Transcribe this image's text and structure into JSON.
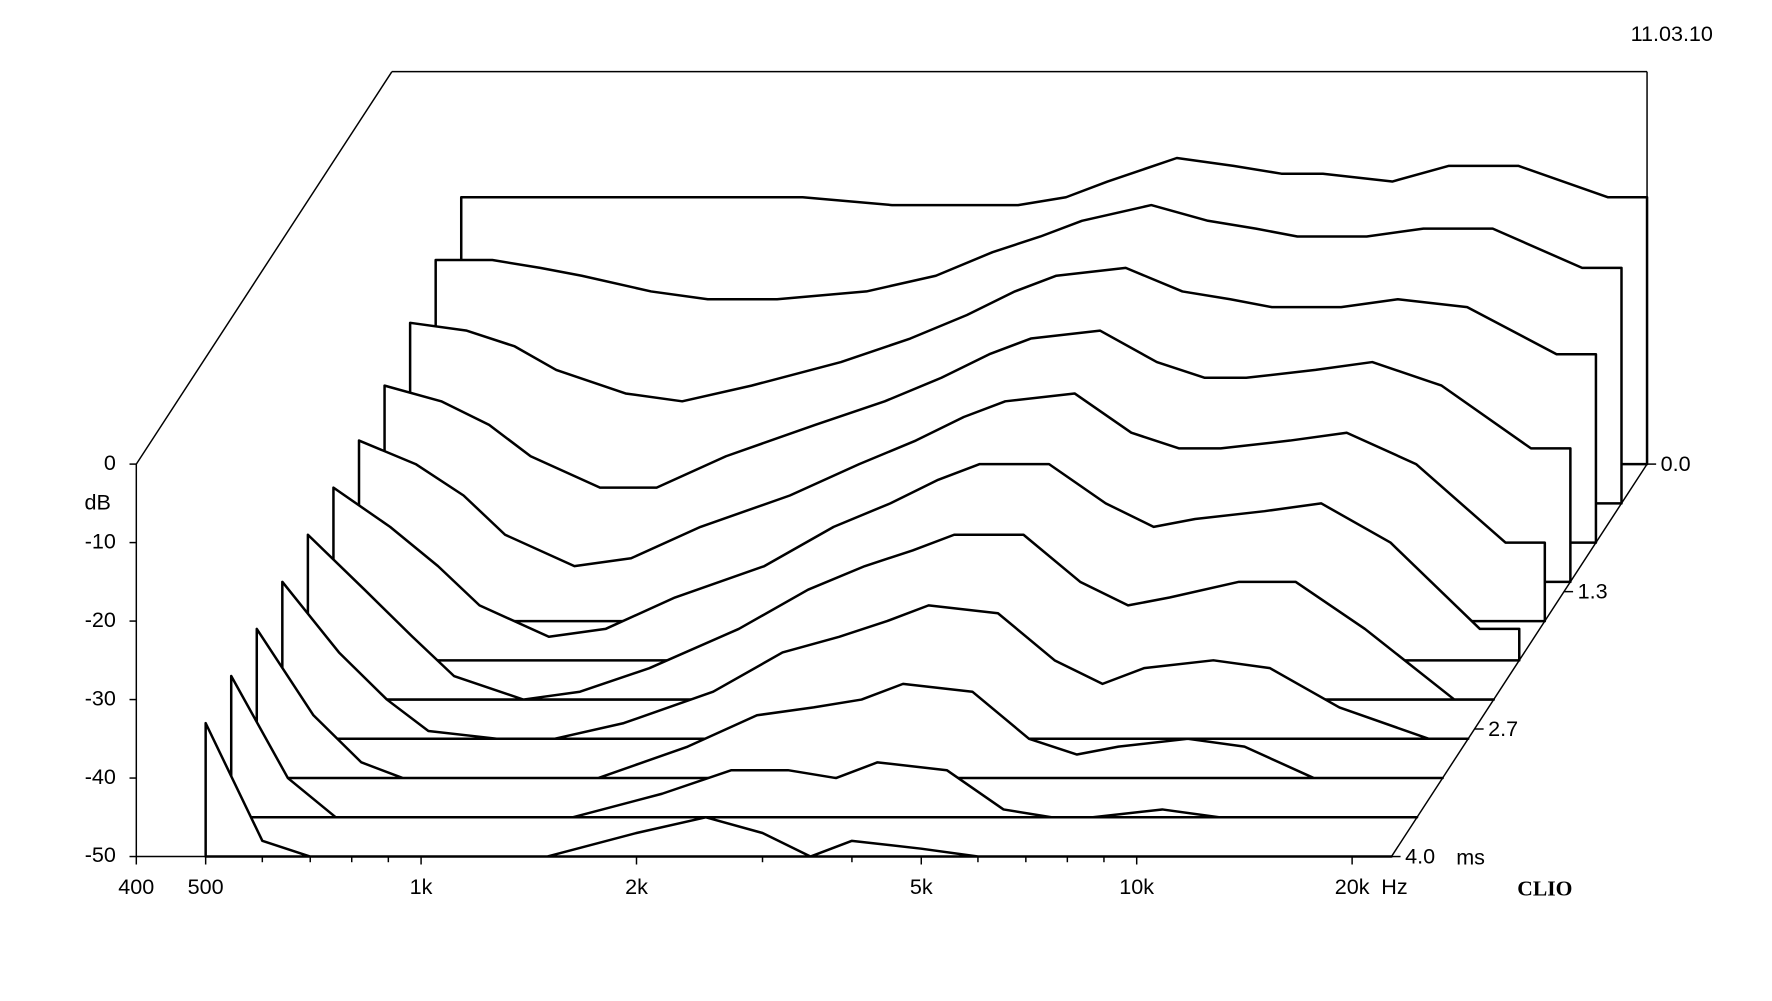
{
  "chart_data": {
    "type": "waterfall",
    "date": "11.03.10",
    "brand": "CLIO",
    "x_unit": "Hz",
    "y_unit": "dB",
    "z_unit": "ms",
    "x_scale": "log",
    "xlim": [
      400,
      22700
    ],
    "xticks": [
      400,
      500,
      {
        "value": 1000,
        "label": "1k"
      },
      {
        "value": 2000,
        "label": "2k"
      },
      {
        "value": 5000,
        "label": "5k"
      },
      {
        "value": 10000,
        "label": "10k"
      },
      {
        "value": 20000,
        "label": "20k"
      }
    ],
    "xminorticks": [
      600,
      700,
      800,
      900,
      3000,
      4000,
      6000,
      7000,
      8000,
      9000
    ],
    "ylim": [
      -50,
      0
    ],
    "yticks": [
      0,
      -10,
      -20,
      -30,
      -40,
      -50
    ],
    "zlim": [
      0,
      4
    ],
    "zticks": [
      {
        "value": 0,
        "label": "0.0"
      },
      1.3,
      2.7,
      {
        "value": 4,
        "label": "4.0"
      }
    ],
    "color": "#000000",
    "x": [
      500,
      600,
      700,
      800,
      1000,
      1200,
      1500,
      2000,
      2500,
      3000,
      3500,
      4000,
      5000,
      6000,
      7000,
      8000,
      10000,
      12000,
      15000,
      20000
    ],
    "slices": [
      {
        "time": 0.0,
        "values": [
          -16,
          -16,
          -16,
          -16,
          -16,
          -16,
          -16,
          -17,
          -17,
          -17,
          -16,
          -14,
          -11,
          -12,
          -13,
          -13,
          -14,
          -12,
          -12,
          -16
        ]
      },
      {
        "time": 0.4,
        "values": [
          -19,
          -19,
          -20,
          -21,
          -23,
          -24,
          -24,
          -23,
          -21,
          -18,
          -16,
          -14,
          -12,
          -14,
          -15,
          -16,
          -16,
          -15,
          -15,
          -20
        ]
      },
      {
        "time": 0.8,
        "values": [
          -22,
          -23,
          -25,
          -28,
          -31,
          -32,
          -30,
          -27,
          -24,
          -21,
          -18,
          -16,
          -15,
          -18,
          -19,
          -20,
          -20,
          -19,
          -20,
          -26
        ]
      },
      {
        "time": 1.2,
        "values": [
          -25,
          -27,
          -30,
          -34,
          -38,
          -38,
          -34,
          -30,
          -27,
          -24,
          -21,
          -19,
          -18,
          -22,
          -24,
          -24,
          -23,
          -22,
          -25,
          -33
        ]
      },
      {
        "time": 1.6,
        "values": [
          -27,
          -30,
          -34,
          -39,
          -43,
          -42,
          -38,
          -34,
          -30,
          -27,
          -24,
          -22,
          -21,
          -26,
          -28,
          -28,
          -27,
          -26,
          -30,
          -40
        ]
      },
      {
        "time": 2.0,
        "values": [
          -28,
          -33,
          -38,
          -43,
          -47,
          -46,
          -42,
          -38,
          -33,
          -30,
          -27,
          -25,
          -25,
          -30,
          -33,
          -32,
          -31,
          -30,
          -35,
          -46
        ]
      },
      {
        "time": 2.4,
        "values": [
          -29,
          -36,
          -42,
          -47,
          -50,
          -49,
          -46,
          -41,
          -36,
          -33,
          -31,
          -29,
          -29,
          -35,
          -38,
          -37,
          -35,
          -35,
          -41,
          -50
        ]
      },
      {
        "time": 2.8,
        "values": [
          -30,
          -39,
          -45,
          -49,
          -50,
          -50,
          -48,
          -44,
          -39,
          -37,
          -35,
          -33,
          -34,
          -40,
          -43,
          -41,
          -40,
          -41,
          -46,
          -50
        ]
      },
      {
        "time": 3.2,
        "values": [
          -31,
          -42,
          -48,
          -50,
          -50,
          -50,
          -50,
          -46,
          -42,
          -41,
          -40,
          -38,
          -39,
          -45,
          -47,
          -46,
          -45,
          -46,
          -50,
          -50
        ]
      },
      {
        "time": 3.6,
        "values": [
          -32,
          -45,
          -50,
          -50,
          -50,
          -50,
          -50,
          -47,
          -44,
          -44,
          -45,
          -43,
          -44,
          -49,
          -50,
          -50,
          -49,
          -50,
          -50,
          -50
        ]
      },
      {
        "time": 4.0,
        "values": [
          -33,
          -48,
          -50,
          -50,
          -50,
          -50,
          -50,
          -47,
          -45,
          -47,
          -50,
          -48,
          -49,
          -50,
          -50,
          -50,
          -50,
          -50,
          -50,
          -50
        ]
      }
    ]
  }
}
